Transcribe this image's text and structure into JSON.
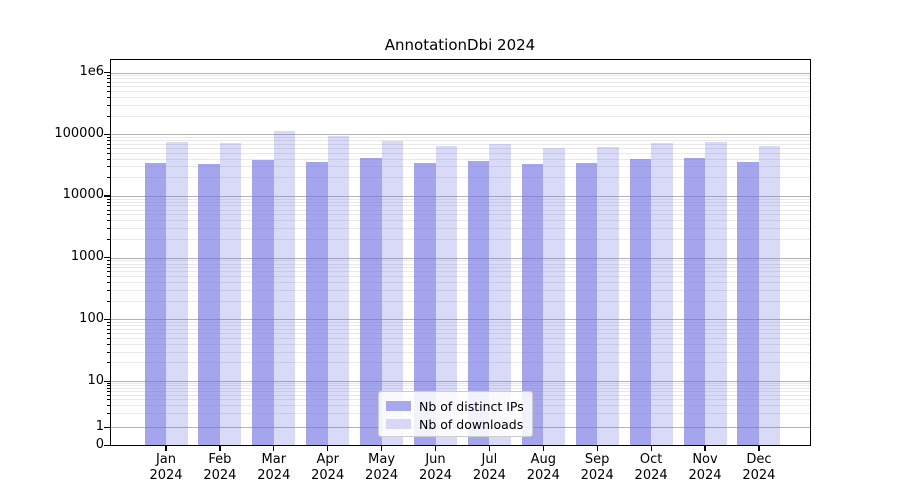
{
  "title": "AnnotationDbi 2024",
  "chart_data": {
    "type": "bar",
    "title": "AnnotationDbi 2024",
    "categories": [
      "Jan 2024",
      "Feb 2024",
      "Mar 2024",
      "Apr 2024",
      "May 2024",
      "Jun 2024",
      "Jul 2024",
      "Aug 2024",
      "Sep 2024",
      "Oct 2024",
      "Nov 2024",
      "Dec 2024"
    ],
    "series": [
      {
        "name": "Nb of distinct IPs",
        "color": "#a8a8ec",
        "fill_rgba": "rgba(110,110,228,0.62)",
        "values": [
          34600,
          33300,
          38100,
          35100,
          41600,
          34600,
          37400,
          32900,
          33800,
          39200,
          40700,
          35000
        ]
      },
      {
        "name": "Nb of downloads",
        "color": "#d8d8f6",
        "fill_rgba": "rgba(110,110,228,0.26)",
        "values": [
          75500,
          71000,
          112000,
          94500,
          78000,
          65000,
          69500,
          59000,
          62000,
          71000,
          75500,
          65000
        ]
      }
    ],
    "yscale": "symlog",
    "ylim": [
      0,
      1600000
    ],
    "y_ticks": [
      {
        "value": 0,
        "label": "0"
      },
      {
        "value": 1,
        "label": "1"
      },
      {
        "value": 10,
        "label": "10"
      },
      {
        "value": 100,
        "label": "100"
      },
      {
        "value": 1000,
        "label": "1000"
      },
      {
        "value": 10000,
        "label": "10000"
      },
      {
        "value": 100000,
        "label": "100000"
      },
      {
        "value": 1000000,
        "label": "1e6"
      }
    ],
    "grid": true,
    "legend_position": "lower center"
  },
  "legend": {
    "items": [
      {
        "label": "Nb of distinct IPs"
      },
      {
        "label": "Nb of downloads"
      }
    ]
  },
  "colors": {
    "distinct_ips_bar": "#a8a8ec",
    "downloads_bar": "#d8d8f6",
    "grid_major": "#b4b4b4",
    "grid_minor": "#e9e9e9",
    "axis": "#000000",
    "background": "#ffffff"
  }
}
